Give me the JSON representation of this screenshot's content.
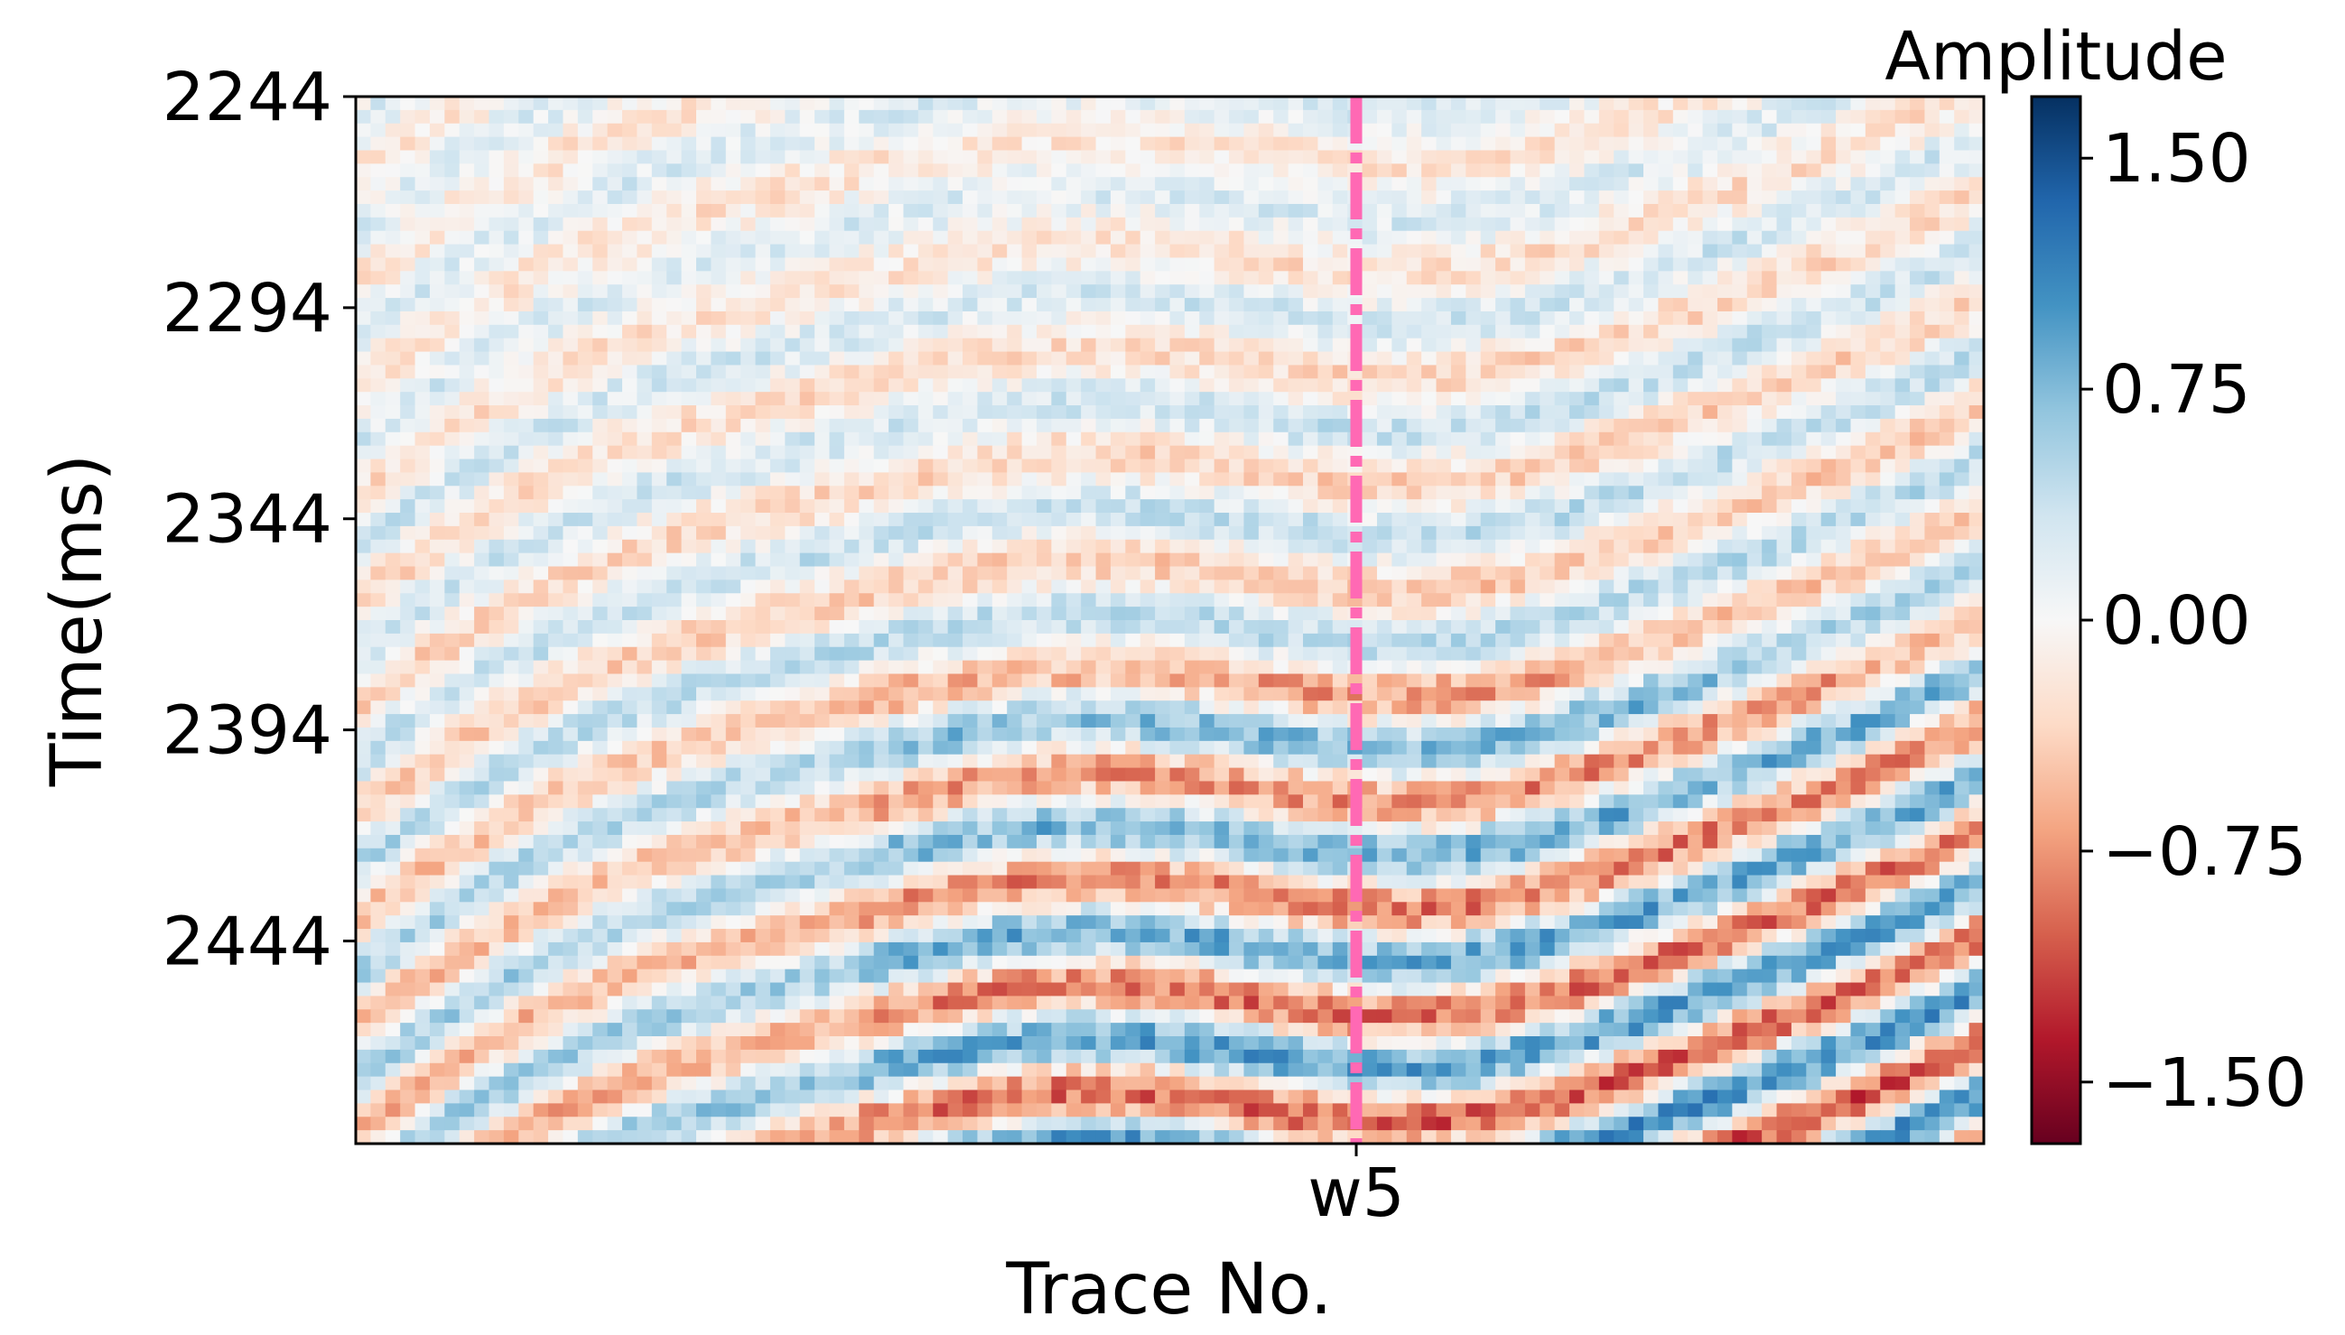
{
  "chart_data": {
    "type": "heatmap",
    "title": "",
    "xlabel": "Trace No.",
    "ylabel": "Time(ms)",
    "x_tick_labels": [
      "w5"
    ],
    "y_tick_labels": [
      "2244",
      "2294",
      "2344",
      "2394",
      "2444"
    ],
    "y_tick_values": [
      2244,
      2294,
      2344,
      2394,
      2444
    ],
    "ylim": [
      2244,
      2492
    ],
    "well": {
      "name": "w5",
      "marker_color": "#ff69b4"
    },
    "colorbar": {
      "label": "Amplitude",
      "colormap": "RdBu",
      "range": [
        -1.7,
        1.7
      ],
      "tick_labels": [
        "1.50",
        "0.75",
        "0.00",
        "−0.75",
        "−1.50"
      ],
      "tick_values": [
        1.5,
        0.75,
        0.0,
        -0.75,
        -1.5
      ],
      "colors": [
        "#67001f",
        "#b2182b",
        "#d6604d",
        "#f4a582",
        "#fddbc7",
        "#f7f7f7",
        "#d1e5f0",
        "#92c5de",
        "#4393c3",
        "#2166ac",
        "#053061"
      ]
    },
    "grid": false
  }
}
